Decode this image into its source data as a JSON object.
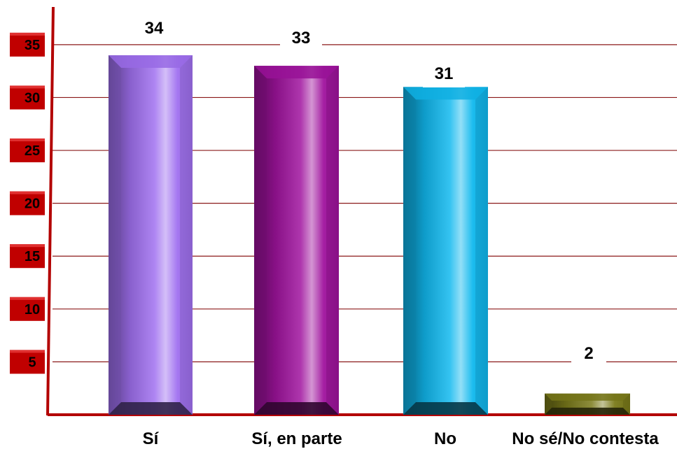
{
  "chart_data": {
    "type": "bar",
    "categories": [
      "Sí",
      "Sí, en parte",
      "No",
      "No sé/No contesta"
    ],
    "values": [
      34,
      33,
      31,
      2
    ],
    "data_labels": [
      "34",
      "33",
      "31",
      "2"
    ],
    "y_ticks": [
      5,
      10,
      15,
      20,
      25,
      30,
      35
    ],
    "ylim": [
      0,
      37
    ],
    "grid": true,
    "colors": {
      "gridline": "#8b1a1a",
      "axis": "#b30000",
      "tick_box": "#c00000",
      "bars": [
        "#a070f0",
        "#a0139e",
        "#10b8ee",
        "#7a7a1a"
      ]
    }
  }
}
